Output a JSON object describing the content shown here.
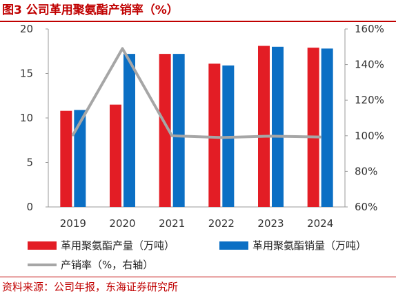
{
  "header": {
    "title": "图3  公司革用聚氨酯产销率（%）"
  },
  "footer": {
    "source": "资料来源：公司年报，东海证券研究所"
  },
  "chart_data": {
    "type": "bar",
    "categories": [
      "2019",
      "2020",
      "2021",
      "2022",
      "2023",
      "2024"
    ],
    "series": [
      {
        "name": "革用聚氨酯产量（万吨）",
        "kind": "bar",
        "axis": "left",
        "color": "#e31d25",
        "values": [
          10.8,
          11.5,
          17.2,
          16.1,
          18.1,
          17.9
        ]
      },
      {
        "name": "革用聚氨酯销量（万吨）",
        "kind": "bar",
        "axis": "left",
        "color": "#0b6fc4",
        "values": [
          10.9,
          17.2,
          17.2,
          15.9,
          18.0,
          17.8
        ]
      },
      {
        "name": "产销率（%，右轴）",
        "kind": "line",
        "axis": "right",
        "color": "#a6a6a6",
        "values": [
          100.5,
          149.0,
          100.0,
          99.0,
          99.8,
          99.3
        ]
      }
    ],
    "y_left": {
      "min": 0,
      "max": 20,
      "step": 5,
      "ticks": [
        "0",
        "5",
        "10",
        "15",
        "20"
      ]
    },
    "y_right": {
      "min": 60,
      "max": 160,
      "step": 20,
      "ticks": [
        "60%",
        "80%",
        "100%",
        "120%",
        "140%",
        "160%"
      ]
    },
    "legend": [
      {
        "label": "革用聚氨酯产量（万吨）",
        "kind": "bar",
        "color": "#e31d25"
      },
      {
        "label": "革用聚氨酯销量（万吨）",
        "kind": "bar",
        "color": "#0b6fc4"
      },
      {
        "label": "产销率（%，右轴）",
        "kind": "line",
        "color": "#a6a6a6"
      }
    ],
    "legend_position": "bottom",
    "grid": false
  }
}
